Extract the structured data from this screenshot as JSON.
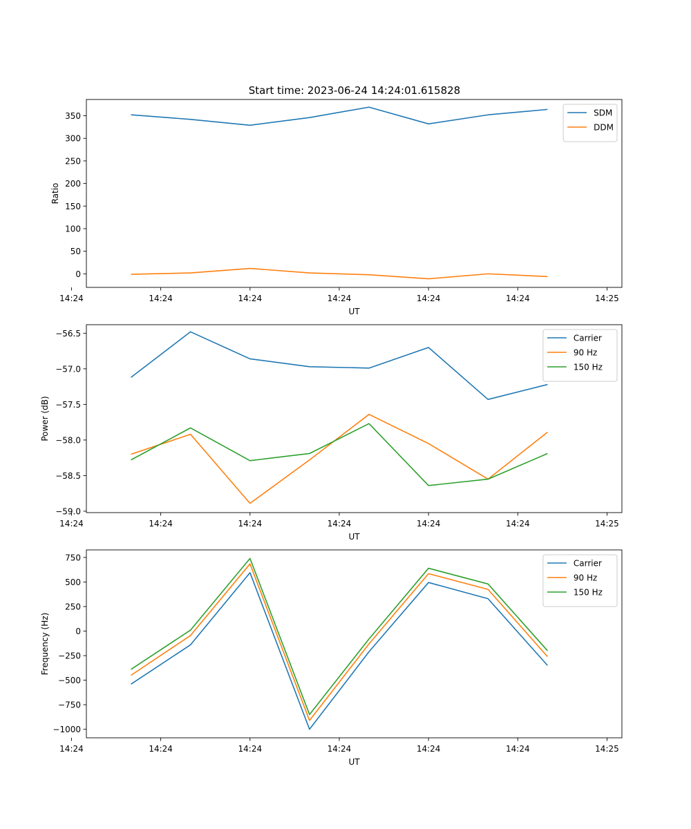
{
  "figure_title": "Start time: 2023-06-24 14:24:01.615828",
  "chart_data": [
    {
      "type": "line",
      "ylabel": "Ratio",
      "xlabel": "UT",
      "x": [
        1,
        2,
        3,
        4,
        5,
        6,
        7,
        8
      ],
      "xlim": [
        0.25,
        9.25
      ],
      "xticks": [
        0,
        1.5,
        3,
        4.5,
        6,
        7.5,
        9
      ],
      "xtick_labels": [
        "14:24",
        "14:24",
        "14:24",
        "14:24",
        "14:24",
        "14:24",
        "14:25"
      ],
      "ylim": [
        -30,
        386
      ],
      "yticks": [
        0,
        50,
        100,
        150,
        200,
        250,
        300,
        350
      ],
      "yticks_labels": [
        "0",
        "50",
        "100",
        "150",
        "200",
        "250",
        "300",
        "350"
      ],
      "legend": "top-right",
      "series": [
        {
          "name": "SDM",
          "color": "#1f77b4",
          "values": [
            352,
            342,
            329,
            346,
            369,
            332,
            352,
            364
          ]
        },
        {
          "name": "DDM",
          "color": "#ff7f0e",
          "values": [
            -1,
            2,
            12,
            2,
            -2,
            -11,
            0,
            -6
          ]
        }
      ]
    },
    {
      "type": "line",
      "ylabel": "Power (dB)",
      "xlabel": "UT",
      "x": [
        1,
        2,
        3,
        4,
        5,
        6,
        7,
        8
      ],
      "xlim": [
        0.25,
        9.25
      ],
      "xticks": [
        0,
        1.5,
        3,
        4.5,
        6,
        7.5,
        9
      ],
      "xtick_labels": [
        "14:24",
        "14:24",
        "14:24",
        "14:24",
        "14:24",
        "14:24",
        "14:25"
      ],
      "ylim": [
        -59.02,
        -56.38
      ],
      "yticks": [
        -59.0,
        -58.5,
        -58.0,
        -57.5,
        -57.0,
        -56.5
      ],
      "yticks_labels": [
        "−59.0",
        "−58.5",
        "−58.0",
        "−57.5",
        "−57.0",
        "−56.5"
      ],
      "legend": "top-right",
      "series": [
        {
          "name": "Carrier",
          "color": "#1f77b4",
          "values": [
            -57.12,
            -56.48,
            -56.86,
            -56.97,
            -56.99,
            -56.7,
            -57.43,
            -57.22
          ]
        },
        {
          "name": "90 Hz",
          "color": "#ff7f0e",
          "values": [
            -58.2,
            -57.92,
            -58.89,
            -58.28,
            -57.64,
            -58.05,
            -58.55,
            -57.89
          ]
        },
        {
          "name": "150 Hz",
          "color": "#2ca02c",
          "values": [
            -58.28,
            -57.83,
            -58.29,
            -58.19,
            -57.77,
            -58.64,
            -58.55,
            -58.19
          ]
        }
      ]
    },
    {
      "type": "line",
      "ylabel": "Frequency (Hz)",
      "xlabel": "UT",
      "x": [
        1,
        2,
        3,
        4,
        5,
        6,
        7,
        8
      ],
      "xlim": [
        0.25,
        9.25
      ],
      "xticks": [
        0,
        1.5,
        3,
        4.5,
        6,
        7.5,
        9
      ],
      "xtick_labels": [
        "14:24",
        "14:24",
        "14:24",
        "14:24",
        "14:24",
        "14:24",
        "14:25"
      ],
      "ylim": [
        -1087,
        827
      ],
      "yticks": [
        -1000,
        -750,
        -500,
        -250,
        0,
        250,
        500,
        750
      ],
      "yticks_labels": [
        "−1000",
        "−750",
        "−500",
        "−250",
        "0",
        "250",
        "500",
        "750"
      ],
      "legend": "top-right",
      "series": [
        {
          "name": "Carrier",
          "color": "#1f77b4",
          "values": [
            -540,
            -140,
            595,
            -1000,
            -210,
            495,
            330,
            -350
          ]
        },
        {
          "name": "90 Hz",
          "color": "#ff7f0e",
          "values": [
            -450,
            -45,
            685,
            -910,
            -130,
            585,
            425,
            -260
          ]
        },
        {
          "name": "150 Hz",
          "color": "#2ca02c",
          "values": [
            -390,
            10,
            740,
            -850,
            -80,
            640,
            480,
            -200
          ]
        }
      ]
    }
  ]
}
